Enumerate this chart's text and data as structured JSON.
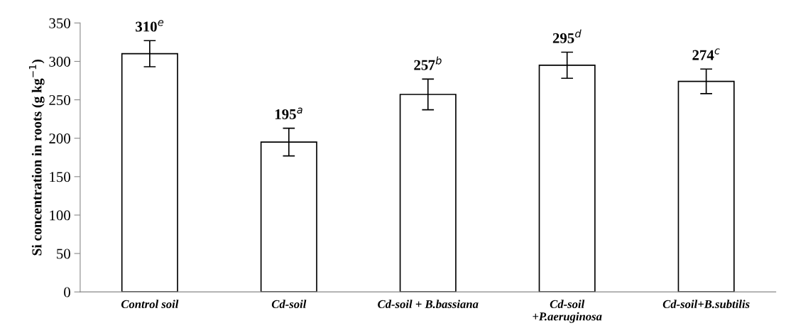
{
  "chart_data": {
    "type": "bar",
    "ylabel": "Si concentration in roots (g kg$^{−1}$)",
    "categories": [
      "Control soil",
      "Cd-soil",
      "Cd-soil + B.bassiana",
      "Cd-soil\n+P.aeruginosa",
      "Cd-soil+B.subtilis"
    ],
    "values": [
      310,
      195,
      257,
      295,
      274
    ],
    "errors": [
      17,
      18,
      20,
      17,
      16
    ],
    "value_labels": [
      "310$^{e}$",
      "195$^{a}$",
      "257$^{b}$",
      "295$^{d}$",
      "274$^{c}$"
    ],
    "color": "#ffffff",
    "ylim": [
      0,
      350
    ],
    "yticks": [
      0,
      50,
      100,
      150,
      200,
      250,
      300,
      350
    ],
    "grid": false,
    "legend": false
  }
}
